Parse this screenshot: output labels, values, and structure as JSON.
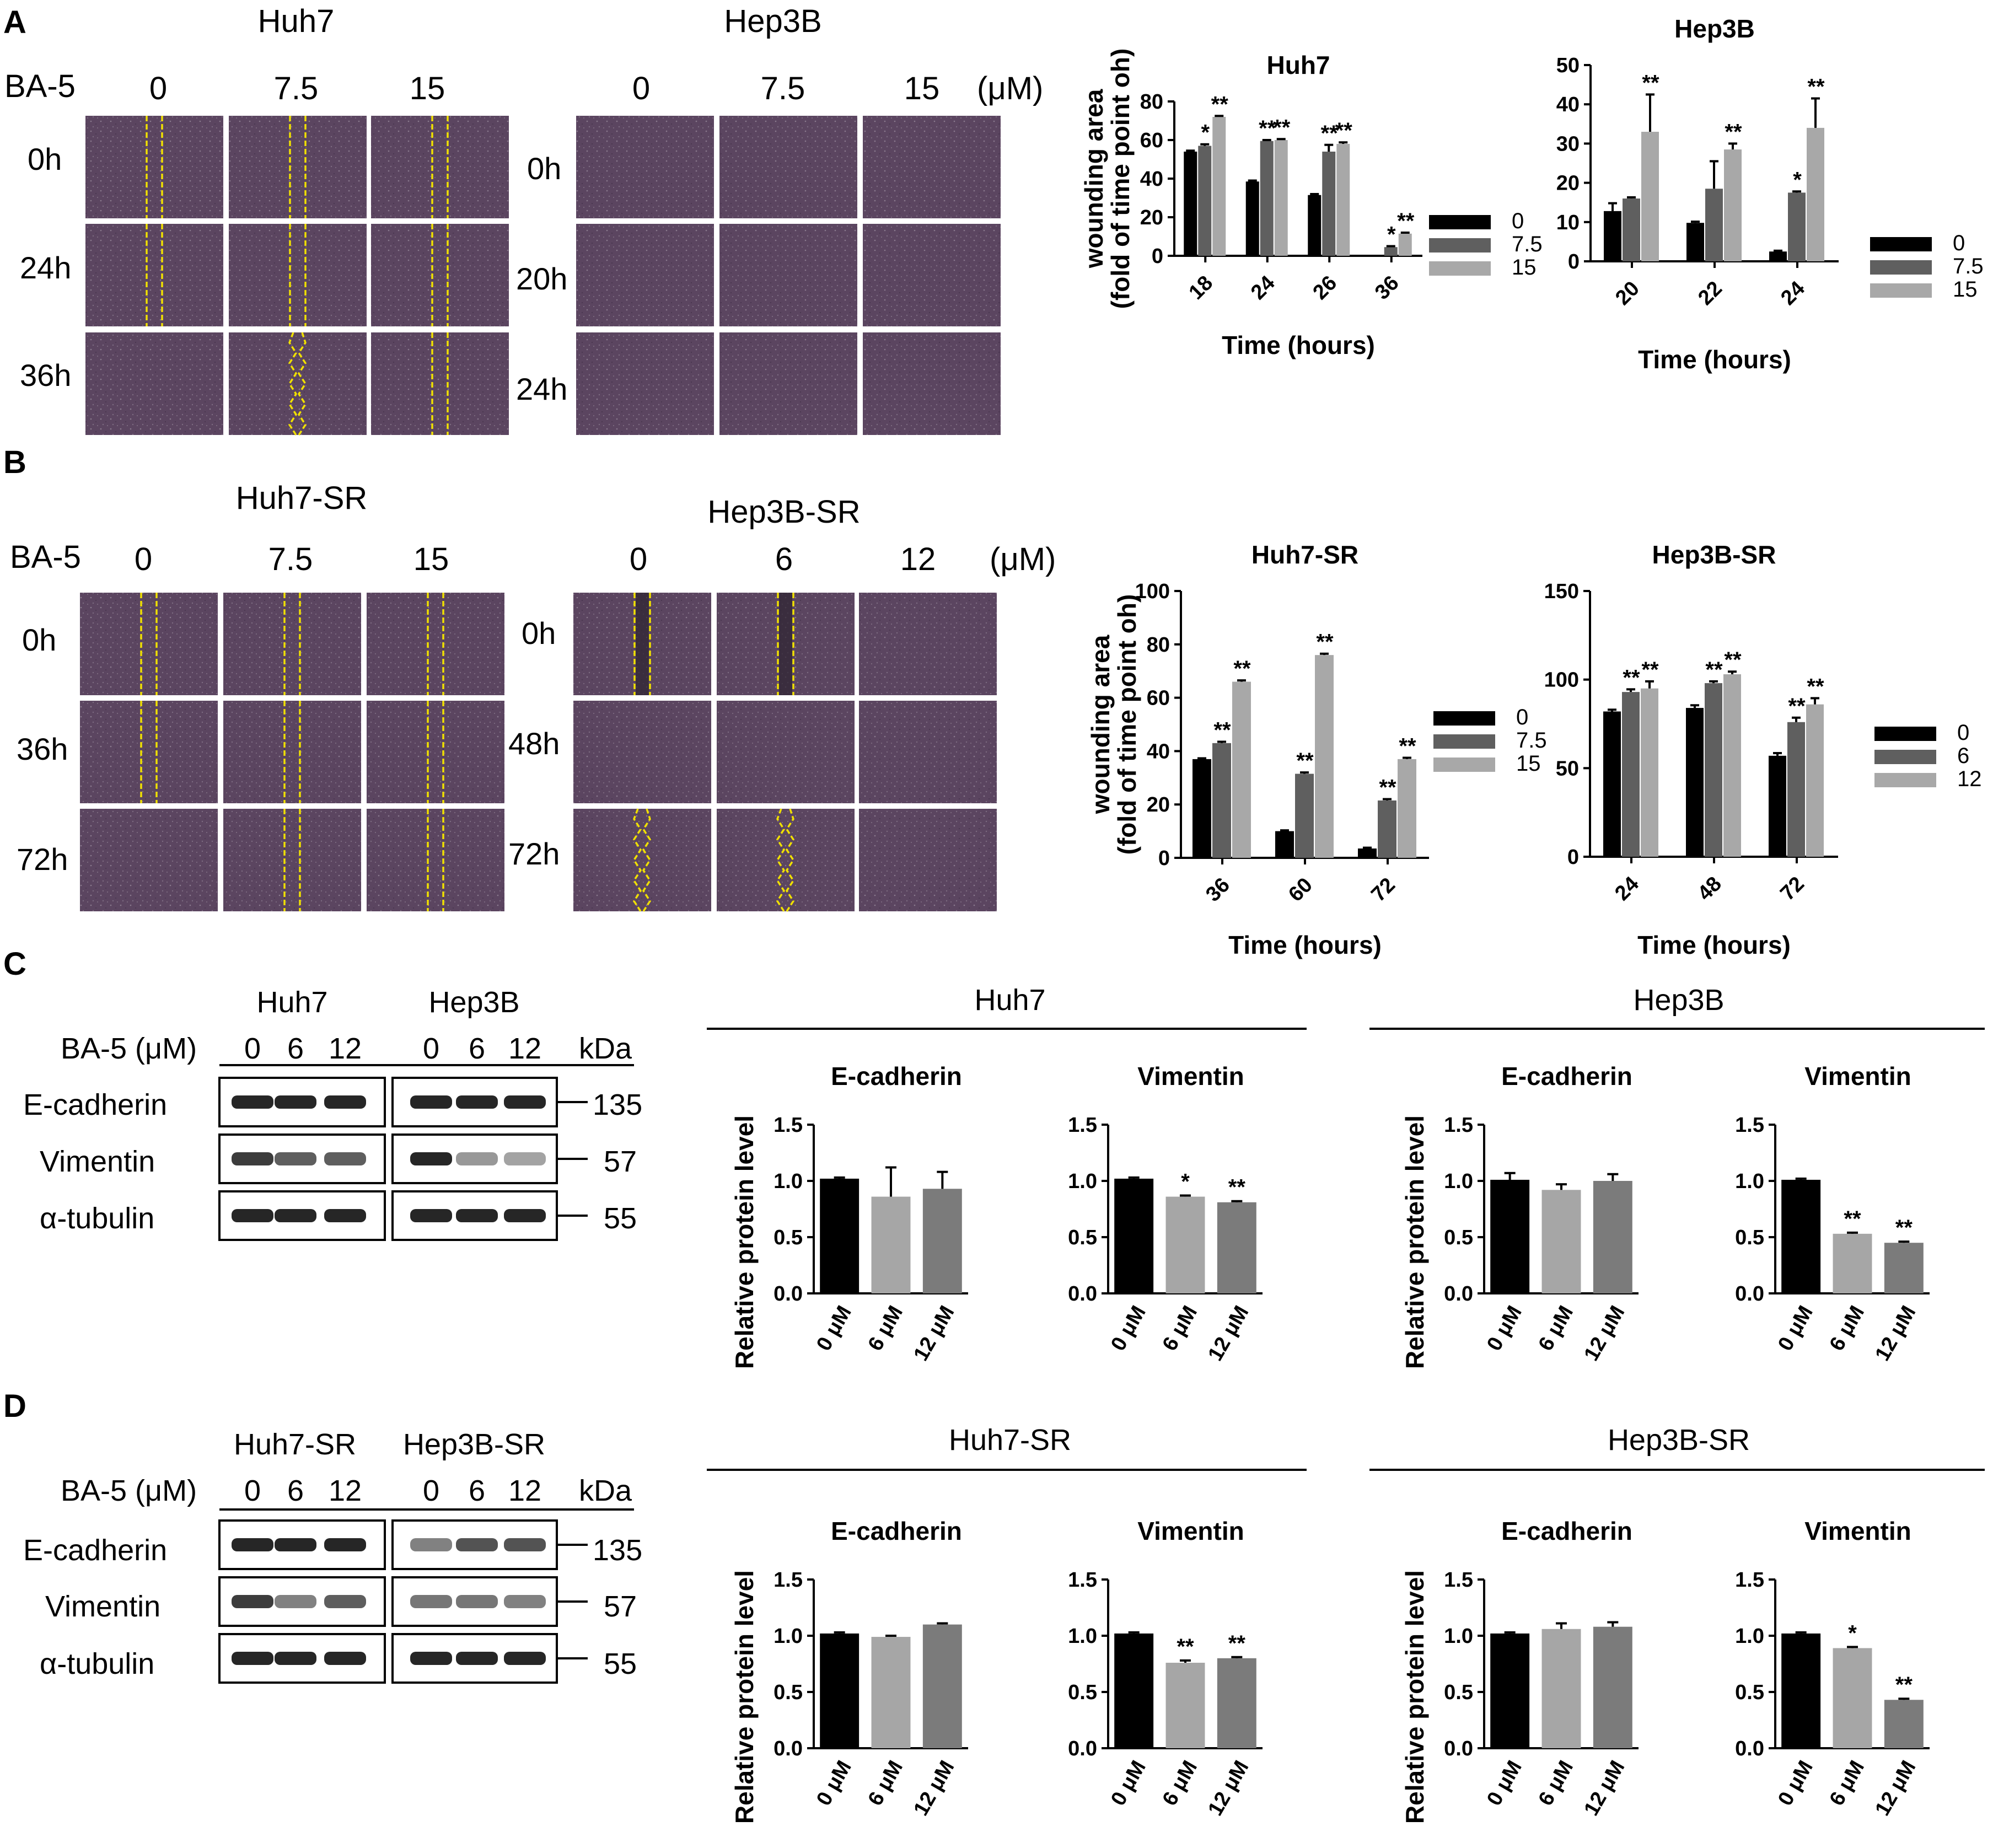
{
  "panels": {
    "A": {
      "letter": "A",
      "treatment_label": "BA-5",
      "unit_label": "(μM)",
      "groups": [
        {
          "cell": "Huh7",
          "doses": [
            "0",
            "7.5",
            "15"
          ],
          "times": [
            "0h",
            "24h",
            "36h"
          ]
        },
        {
          "cell": "Hep3B",
          "doses": [
            "0",
            "7.5",
            "15"
          ],
          "times": [
            "0h",
            "20h",
            "24h"
          ]
        }
      ]
    },
    "B": {
      "letter": "B",
      "treatment_label": "BA-5",
      "unit_label": "(μM)",
      "groups": [
        {
          "cell": "Huh7-SR",
          "doses": [
            "0",
            "7.5",
            "15"
          ],
          "times": [
            "0h",
            "36h",
            "72h"
          ]
        },
        {
          "cell": "Hep3B-SR",
          "doses": [
            "0",
            "6",
            "12"
          ],
          "times": [
            "0h",
            "48h",
            "72h"
          ]
        }
      ]
    },
    "C": {
      "letter": "C",
      "cells": [
        "Huh7",
        "Hep3B"
      ],
      "treatment_label": "BA-5 (μM)",
      "doses": [
        "0",
        "6",
        "12"
      ],
      "kda_label": "kDa",
      "proteins": [
        "E-cadherin",
        "Vimentin",
        "α-tubulin"
      ],
      "kda": [
        "135",
        "57",
        "55"
      ],
      "chart_headers": [
        "Huh7",
        "Hep3B"
      ]
    },
    "D": {
      "letter": "D",
      "cells": [
        "Huh7-SR",
        "Hep3B-SR"
      ],
      "treatment_label": "BA-5 (μM)",
      "doses": [
        "0",
        "6",
        "12"
      ],
      "kda_label": "kDa",
      "proteins": [
        "E-cadherin",
        "Vimentin",
        "α-tubulin"
      ],
      "kda": [
        "135",
        "57",
        "55"
      ],
      "chart_headers": [
        "Huh7-SR",
        "Hep3B-SR"
      ]
    }
  },
  "colors": {
    "series_dark": "#000000",
    "series_mid": "#5f5f5f",
    "series_light": "#a8a8a8",
    "wb_light": "#a6a6a6",
    "wb_mid": "#7b7b7b",
    "micro_bg": "#5b4560",
    "scratch_line": "#f0e000"
  },
  "chart_data": [
    {
      "id": "A-huh7",
      "type": "bar",
      "title": "Huh7",
      "xlabel": "Time (hours)",
      "ylabel": "wounding area (fold of time point oh)",
      "categories": [
        "18",
        "24",
        "26",
        "36"
      ],
      "ylim": [
        0,
        80
      ],
      "yticks": [
        "0",
        "20",
        "40",
        "60",
        "80"
      ],
      "legend": [
        "0",
        "7.5",
        "15"
      ],
      "series": [
        {
          "name": "0",
          "values": [
            54,
            38.5,
            31.5,
            0
          ],
          "errors": [
            0.5,
            0.5,
            0.5,
            0
          ],
          "stars": [
            "",
            "",
            "",
            ""
          ]
        },
        {
          "name": "7.5",
          "values": [
            57,
            59.5,
            54,
            4.5
          ],
          "errors": [
            0.8,
            0.5,
            3.5,
            0.5
          ],
          "stars": [
            "*",
            "**",
            "**",
            "*"
          ]
        },
        {
          "name": "15",
          "values": [
            72,
            60,
            58,
            11.5
          ],
          "errors": [
            0.5,
            0.5,
            0.8,
            0.5
          ],
          "stars": [
            "**",
            "**",
            "**",
            "**"
          ]
        }
      ]
    },
    {
      "id": "A-hep3b",
      "type": "bar",
      "title": "Hep3B",
      "xlabel": "Time (hours)",
      "ylabel": "",
      "categories": [
        "20",
        "22",
        "24"
      ],
      "ylim": [
        0,
        50
      ],
      "yticks": [
        "0",
        "10",
        "20",
        "30",
        "40",
        "50"
      ],
      "legend": [
        "0",
        "7.5",
        "15"
      ],
      "series": [
        {
          "name": "0",
          "values": [
            12.8,
            9.8,
            2.5
          ],
          "errors": [
            2.0,
            0.3,
            0.2
          ],
          "stars": [
            "",
            "",
            ""
          ]
        },
        {
          "name": "7.5",
          "values": [
            16,
            18.5,
            17.5
          ],
          "errors": [
            0.3,
            7.0,
            0.3
          ],
          "stars": [
            "",
            "",
            "*"
          ]
        },
        {
          "name": "15",
          "values": [
            33,
            28.5,
            34
          ],
          "errors": [
            9.5,
            1.5,
            7.5
          ],
          "stars": [
            "**",
            "**",
            "**"
          ]
        }
      ]
    },
    {
      "id": "B-huh7sr",
      "type": "bar",
      "title": "Huh7-SR",
      "xlabel": "Time (hours)",
      "ylabel": "wounding area (fold of time point oh)",
      "categories": [
        "36",
        "60",
        "72"
      ],
      "ylim": [
        0,
        100
      ],
      "yticks": [
        "0",
        "20",
        "40",
        "60",
        "80",
        "100"
      ],
      "legend": [
        "0",
        "7.5",
        "15"
      ],
      "series": [
        {
          "name": "0",
          "values": [
            37,
            10,
            3.5
          ],
          "errors": [
            0.3,
            0.3,
            0.3
          ],
          "stars": [
            "",
            "",
            ""
          ]
        },
        {
          "name": "7.5",
          "values": [
            43,
            31.5,
            21.5
          ],
          "errors": [
            0.5,
            0.5,
            0.5
          ],
          "stars": [
            "**",
            "**",
            "**"
          ]
        },
        {
          "name": "15",
          "values": [
            66,
            76,
            37
          ],
          "errors": [
            0.5,
            0.5,
            0.5
          ],
          "stars": [
            "**",
            "**",
            "**"
          ]
        }
      ]
    },
    {
      "id": "B-hep3bsr",
      "type": "bar",
      "title": "Hep3B-SR",
      "xlabel": "Time (hours)",
      "ylabel": "",
      "categories": [
        "24",
        "48",
        "72"
      ],
      "ylim": [
        0,
        150
      ],
      "yticks": [
        "0",
        "50",
        "100",
        "150"
      ],
      "legend": [
        "0",
        "6",
        "12"
      ],
      "series": [
        {
          "name": "0",
          "values": [
            82,
            84,
            57
          ],
          "errors": [
            1,
            1.5,
            1.5
          ],
          "stars": [
            "",
            "",
            ""
          ]
        },
        {
          "name": "6",
          "values": [
            93,
            98,
            76
          ],
          "errors": [
            1.5,
            1,
            2.5
          ],
          "stars": [
            "**",
            "**",
            "**"
          ]
        },
        {
          "name": "12",
          "values": [
            95,
            103,
            86
          ],
          "errors": [
            4,
            1.5,
            3.5
          ],
          "stars": [
            "**",
            "**",
            "**"
          ]
        }
      ]
    },
    {
      "id": "C-huh7-ecad",
      "type": "bar",
      "title": "E-cadherin",
      "ylabel": "Relative protein level",
      "categories": [
        "0 μM",
        "6 μM",
        "12 μM"
      ],
      "values": [
        1.02,
        0.86,
        0.93
      ],
      "errors": [
        0.01,
        0.26,
        0.15
      ],
      "stars": [
        "",
        "",
        ""
      ],
      "ylim": [
        0,
        1.5
      ],
      "yticks": [
        "0.0",
        "0.5",
        "1.0",
        "1.5"
      ]
    },
    {
      "id": "C-huh7-vim",
      "type": "bar",
      "title": "Vimentin",
      "ylabel": "",
      "categories": [
        "0 μM",
        "6 μM",
        "12 μM"
      ],
      "values": [
        1.02,
        0.86,
        0.81
      ],
      "errors": [
        0.01,
        0.01,
        0.01
      ],
      "stars": [
        "",
        "*",
        "**"
      ],
      "ylim": [
        0,
        1.5
      ],
      "yticks": [
        "0.0",
        "0.5",
        "1.0",
        "1.5"
      ]
    },
    {
      "id": "C-hep3b-ecad",
      "type": "bar",
      "title": "E-cadherin",
      "ylabel": "Relative protein level",
      "categories": [
        "0 μM",
        "6 μM",
        "12 μM"
      ],
      "values": [
        1.01,
        0.92,
        1.0
      ],
      "errors": [
        0.06,
        0.05,
        0.06
      ],
      "stars": [
        "",
        "",
        ""
      ],
      "ylim": [
        0,
        1.5
      ],
      "yticks": [
        "0.0",
        "0.5",
        "1.0",
        "1.5"
      ]
    },
    {
      "id": "C-hep3b-vim",
      "type": "bar",
      "title": "Vimentin",
      "ylabel": "",
      "categories": [
        "0 μM",
        "6 μM",
        "12 μM"
      ],
      "values": [
        1.01,
        0.53,
        0.45
      ],
      "errors": [
        0.01,
        0.01,
        0.01
      ],
      "stars": [
        "",
        "**",
        "**"
      ],
      "ylim": [
        0,
        1.5
      ],
      "yticks": [
        "0.0",
        "0.5",
        "1.0",
        "1.5"
      ]
    },
    {
      "id": "D-huh7sr-ecad",
      "type": "bar",
      "title": "E-cadherin",
      "ylabel": "Relative protein level",
      "categories": [
        "0 μM",
        "6 μM",
        "12 μM"
      ],
      "values": [
        1.02,
        0.99,
        1.1
      ],
      "errors": [
        0.01,
        0.01,
        0.01
      ],
      "stars": [
        "",
        "",
        ""
      ],
      "ylim": [
        0,
        1.5
      ],
      "yticks": [
        "0.0",
        "0.5",
        "1.0",
        "1.5"
      ]
    },
    {
      "id": "D-huh7sr-vim",
      "type": "bar",
      "title": "Vimentin",
      "ylabel": "",
      "categories": [
        "0 μM",
        "6 μM",
        "12 μM"
      ],
      "values": [
        1.02,
        0.76,
        0.8
      ],
      "errors": [
        0.01,
        0.02,
        0.01
      ],
      "stars": [
        "",
        "**",
        "**"
      ],
      "ylim": [
        0,
        1.5
      ],
      "yticks": [
        "0.0",
        "0.5",
        "1.0",
        "1.5"
      ]
    },
    {
      "id": "D-hep3bsr-ecad",
      "type": "bar",
      "title": "E-cadherin",
      "ylabel": "Relative protein level",
      "categories": [
        "0 μM",
        "6 μM",
        "12 μM"
      ],
      "values": [
        1.02,
        1.06,
        1.08
      ],
      "errors": [
        0.01,
        0.05,
        0.04
      ],
      "stars": [
        "",
        "",
        ""
      ],
      "ylim": [
        0,
        1.5
      ],
      "yticks": [
        "0.0",
        "0.5",
        "1.0",
        "1.5"
      ]
    },
    {
      "id": "D-hep3bsr-vim",
      "type": "bar",
      "title": "Vimentin",
      "ylabel": "",
      "categories": [
        "0 μM",
        "6 μM",
        "12 μM"
      ],
      "values": [
        1.02,
        0.89,
        0.43
      ],
      "errors": [
        0.01,
        0.01,
        0.01
      ],
      "stars": [
        "",
        "*",
        "**"
      ],
      "ylim": [
        0,
        1.5
      ],
      "yticks": [
        "0.0",
        "0.5",
        "1.0",
        "1.5"
      ]
    }
  ]
}
